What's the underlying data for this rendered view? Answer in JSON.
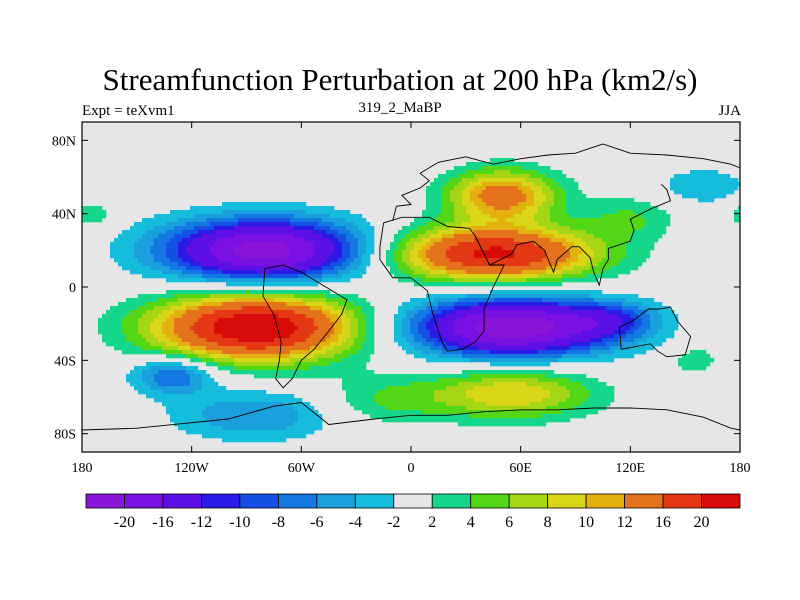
{
  "title": "Streamfunction Perturbation at 200 hPa (km2/s)",
  "left_subtitle": "Expt = teXvm1",
  "center_subtitle": "319_2_MaBP",
  "right_subtitle": "JJA",
  "lat_ticks": [
    {
      "value": 80,
      "label": "80N"
    },
    {
      "value": 40,
      "label": "40N"
    },
    {
      "value": 0,
      "label": "0"
    },
    {
      "value": -40,
      "label": "40S"
    },
    {
      "value": -80,
      "label": "80S"
    }
  ],
  "lon_ticks": [
    {
      "value": -180,
      "label": "180"
    },
    {
      "value": -120,
      "label": "120W"
    },
    {
      "value": -60,
      "label": "60W"
    },
    {
      "value": 0,
      "label": "0"
    },
    {
      "value": 60,
      "label": "60E"
    },
    {
      "value": 120,
      "label": "120E"
    },
    {
      "value": 180,
      "label": "180"
    }
  ],
  "colorbar": {
    "colors": [
      "#8a14d8",
      "#7a10e2",
      "#5c10e6",
      "#2a1ae6",
      "#1450e6",
      "#1478e2",
      "#1aa0dc",
      "#16bcdc",
      "#e6e6e6",
      "#16d68a",
      "#52d616",
      "#a4d616",
      "#d8d616",
      "#e4b010",
      "#e4721a",
      "#e43814",
      "#d80a0a"
    ],
    "labels": [
      "-20",
      "-16",
      "-12",
      "-10",
      "-8",
      "-6",
      "-4",
      "-2",
      "2",
      "4",
      "6",
      "8",
      "10",
      "12",
      "16",
      "20"
    ]
  },
  "background_color": "#e6e6e6",
  "blobs": [
    {
      "lon": -80,
      "lat": 20,
      "rlon": 55,
      "rlat": 17,
      "amp": -22
    },
    {
      "lon": -175,
      "lat": 40,
      "rlon": 12,
      "rlat": 8,
      "amp": 4
    },
    {
      "lon": -130,
      "lat": -48,
      "rlon": 22,
      "rlat": 10,
      "amp": -9
    },
    {
      "lon": -85,
      "lat": -22,
      "rlon": 55,
      "rlat": 18,
      "amp": 24
    },
    {
      "lon": -85,
      "lat": -70,
      "rlon": 45,
      "rlat": 14,
      "amp": -6
    },
    {
      "lon": -15,
      "lat": -62,
      "rlon": 35,
      "rlat": 14,
      "amp": 4
    },
    {
      "lon": 55,
      "lat": -58,
      "rlon": 45,
      "rlat": 14,
      "amp": 10
    },
    {
      "lon": 55,
      "lat": -22,
      "rlon": 55,
      "rlat": 16,
      "amp": -23
    },
    {
      "lon": 110,
      "lat": -18,
      "rlon": 25,
      "rlat": 10,
      "amp": -6
    },
    {
      "lon": 155,
      "lat": -40,
      "rlon": 12,
      "rlat": 7,
      "amp": 4
    },
    {
      "lon": 45,
      "lat": 18,
      "rlon": 55,
      "rlat": 15,
      "amp": 21
    },
    {
      "lon": 50,
      "lat": 50,
      "rlon": 30,
      "rlat": 14,
      "amp": 14
    },
    {
      "lon": 120,
      "lat": 38,
      "rlon": 25,
      "rlat": 12,
      "amp": 4
    },
    {
      "lon": 160,
      "lat": 55,
      "rlon": 25,
      "rlat": 10,
      "amp": -4
    }
  ],
  "land_outlines": [
    {
      "name": "africa",
      "points": [
        [
          -15,
          35
        ],
        [
          -5,
          38
        ],
        [
          10,
          38
        ],
        [
          20,
          33
        ],
        [
          32,
          32
        ],
        [
          35,
          28
        ],
        [
          43,
          12
        ],
        [
          51,
          12
        ],
        [
          45,
          0
        ],
        [
          40,
          -12
        ],
        [
          40,
          -24
        ],
        [
          35,
          -30
        ],
        [
          28,
          -34
        ],
        [
          20,
          -35
        ],
        [
          17,
          -30
        ],
        [
          12,
          -15
        ],
        [
          9,
          -2
        ],
        [
          0,
          5
        ],
        [
          -10,
          5
        ],
        [
          -17,
          15
        ],
        [
          -17,
          22
        ],
        [
          -15,
          35
        ]
      ]
    },
    {
      "name": "south-america",
      "points": [
        [
          -80,
          10
        ],
        [
          -70,
          12
        ],
        [
          -60,
          8
        ],
        [
          -50,
          2
        ],
        [
          -35,
          -7
        ],
        [
          -38,
          -15
        ],
        [
          -45,
          -24
        ],
        [
          -53,
          -34
        ],
        [
          -60,
          -40
        ],
        [
          -65,
          -50
        ],
        [
          -70,
          -55
        ],
        [
          -74,
          -50
        ],
        [
          -72,
          -40
        ],
        [
          -71,
          -30
        ],
        [
          -75,
          -15
        ],
        [
          -81,
          -5
        ],
        [
          -80,
          10
        ]
      ]
    },
    {
      "name": "eurasia",
      "points": [
        [
          -10,
          36
        ],
        [
          -8,
          44
        ],
        [
          0,
          45
        ],
        [
          -5,
          50
        ],
        [
          5,
          54
        ],
        [
          10,
          58
        ],
        [
          5,
          62
        ],
        [
          15,
          68
        ],
        [
          30,
          71
        ],
        [
          45,
          67
        ],
        [
          60,
          70
        ],
        [
          75,
          72
        ],
        [
          90,
          73
        ],
        [
          105,
          78
        ],
        [
          120,
          73
        ],
        [
          140,
          72
        ],
        [
          160,
          70
        ],
        [
          175,
          67
        ],
        [
          180,
          65
        ]
      ]
    },
    {
      "name": "asia-south",
      "points": [
        [
          35,
          28
        ],
        [
          43,
          12
        ],
        [
          55,
          18
        ],
        [
          58,
          23
        ],
        [
          67,
          25
        ],
        [
          73,
          20
        ],
        [
          78,
          8
        ],
        [
          80,
          15
        ],
        [
          88,
          22
        ],
        [
          92,
          22
        ],
        [
          98,
          16
        ],
        [
          100,
          8
        ],
        [
          103,
          1
        ],
        [
          105,
          10
        ],
        [
          108,
          15
        ],
        [
          108,
          21
        ],
        [
          120,
          25
        ],
        [
          122,
          31
        ],
        [
          120,
          37
        ],
        [
          126,
          40
        ],
        [
          132,
          43
        ],
        [
          142,
          47
        ],
        [
          140,
          53
        ],
        [
          137,
          56
        ]
      ]
    },
    {
      "name": "australia",
      "points": [
        [
          114,
          -22
        ],
        [
          122,
          -18
        ],
        [
          130,
          -12
        ],
        [
          136,
          -12
        ],
        [
          142,
          -11
        ],
        [
          146,
          -19
        ],
        [
          153,
          -27
        ],
        [
          150,
          -37
        ],
        [
          140,
          -38
        ],
        [
          135,
          -35
        ],
        [
          131,
          -31
        ],
        [
          115,
          -34
        ],
        [
          114,
          -22
        ]
      ]
    },
    {
      "name": "antarctica",
      "points": [
        [
          -180,
          -78
        ],
        [
          -150,
          -77
        ],
        [
          -120,
          -74
        ],
        [
          -100,
          -72
        ],
        [
          -75,
          -65
        ],
        [
          -60,
          -63
        ],
        [
          -45,
          -75
        ],
        [
          -20,
          -72
        ],
        [
          0,
          -70
        ],
        [
          20,
          -70
        ],
        [
          40,
          -68
        ],
        [
          60,
          -67
        ],
        [
          80,
          -67
        ],
        [
          100,
          -66
        ],
        [
          120,
          -66
        ],
        [
          140,
          -67
        ],
        [
          160,
          -71
        ],
        [
          175,
          -77
        ],
        [
          180,
          -78
        ]
      ]
    }
  ]
}
